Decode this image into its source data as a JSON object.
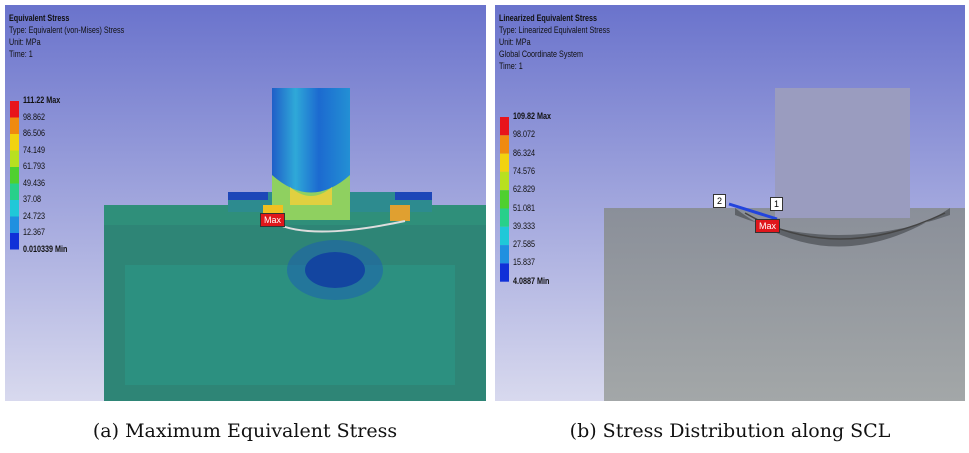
{
  "panels": [
    {
      "header": [
        "Equivalent Stress",
        "Type: Equivalent (von-Mises) Stress",
        "Unit: MPa",
        "Time: 1"
      ],
      "legend": [
        "111.22 Max",
        "98.862",
        "86.506",
        "74.149",
        "61.793",
        "49.436",
        "37.08",
        "24.723",
        "12.367",
        "0.010339 Min"
      ],
      "markers": [
        "Max"
      ],
      "caption": "(a) Maximum Equivalent Stress"
    },
    {
      "header": [
        "Linearized Equivalent Stress",
        "Type: Linearized Equivalent Stress",
        "Unit: MPa",
        "Global Coordinate System",
        "Time: 1"
      ],
      "legend": [
        "109.82 Max",
        "98.072",
        "86.324",
        "74.576",
        "62.829",
        "51.081",
        "39.333",
        "27.585",
        "15.837",
        "4.0887 Min"
      ],
      "markers": [
        "2",
        "1",
        "Max"
      ],
      "caption": "(b) Stress Distribution along SCL"
    }
  ]
}
